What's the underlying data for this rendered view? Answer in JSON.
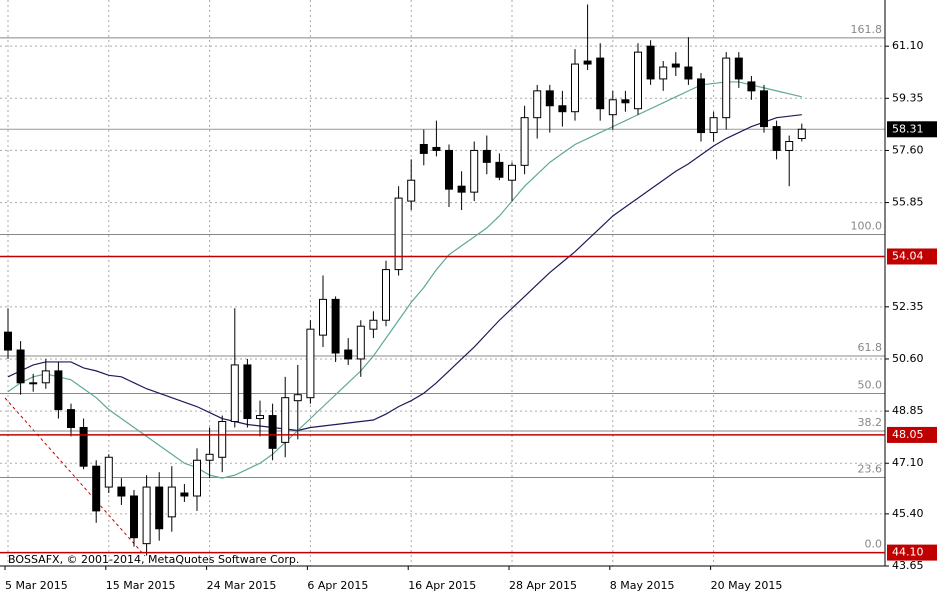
{
  "chart_data": {
    "type": "candlestick",
    "watermark": "BOSSAFX, © 2001-2014, MetaQuotes Software Corp.",
    "categories": [
      "5 Mar 2015",
      null,
      null,
      null,
      null,
      null,
      null,
      null,
      "15 Mar 2015",
      null,
      null,
      null,
      null,
      null,
      null,
      null,
      "24 Mar 2015",
      null,
      null,
      null,
      null,
      null,
      null,
      null,
      "6 Apr 2015",
      null,
      null,
      null,
      null,
      null,
      null,
      null,
      "16 Apr 2015",
      null,
      null,
      null,
      null,
      null,
      null,
      null,
      "28 Apr 2015",
      null,
      null,
      null,
      null,
      null,
      null,
      null,
      "8 May 2015",
      null,
      null,
      null,
      null,
      null,
      null,
      null,
      "20 May 2015",
      null,
      null,
      null,
      null,
      null,
      null,
      null
    ],
    "open": [
      51.5,
      50.9,
      49.8,
      49.8,
      50.2,
      48.9,
      48.3,
      47.0,
      46.3,
      46.3,
      46.0,
      44.4,
      46.3,
      45.3,
      46.1,
      46.0,
      47.2,
      47.3,
      48.5,
      50.4,
      48.6,
      48.7,
      47.8,
      49.2,
      49.3,
      51.4,
      52.6,
      50.9,
      50.6,
      51.6,
      51.9,
      53.6,
      55.9,
      57.8,
      57.7,
      57.6,
      56.4,
      56.2,
      57.6,
      57.2,
      56.6,
      57.1,
      58.7,
      59.6,
      59.1,
      58.9,
      60.6,
      60.7,
      58.8,
      59.3,
      59.0,
      61.1,
      60.0,
      60.5,
      60.4,
      60.0,
      58.2,
      58.7,
      60.7,
      59.9,
      59.6,
      58.4,
      57.6,
      58.0
    ],
    "high": [
      52.3,
      51.2,
      50.1,
      50.6,
      50.5,
      49.1,
      48.6,
      47.2,
      47.4,
      46.6,
      46.2,
      46.7,
      46.8,
      47.0,
      46.4,
      47.6,
      48.3,
      48.7,
      52.3,
      50.6,
      49.2,
      49.1,
      50.0,
      50.4,
      51.9,
      53.4,
      52.7,
      51.3,
      51.9,
      52.2,
      53.9,
      56.4,
      57.3,
      58.3,
      58.6,
      57.8,
      56.9,
      57.9,
      58.1,
      57.5,
      57.2,
      59.1,
      59.8,
      59.8,
      59.6,
      61.0,
      62.5,
      61.2,
      59.6,
      59.6,
      61.2,
      61.3,
      60.6,
      60.9,
      61.4,
      60.2,
      58.9,
      60.9,
      60.9,
      60.1,
      59.8,
      58.6,
      58.1,
      58.5
    ],
    "low": [
      50.6,
      49.4,
      49.5,
      49.6,
      48.6,
      48.0,
      46.9,
      45.1,
      46.1,
      45.7,
      44.3,
      44.0,
      44.5,
      44.8,
      45.8,
      45.5,
      46.6,
      46.8,
      48.3,
      48.3,
      48.0,
      47.2,
      47.3,
      47.9,
      49.1,
      51.0,
      50.5,
      50.4,
      50.0,
      51.3,
      51.7,
      53.4,
      55.6,
      57.1,
      57.4,
      55.7,
      55.6,
      55.9,
      56.8,
      56.6,
      55.9,
      56.8,
      58.0,
      58.2,
      58.4,
      58.6,
      60.3,
      58.6,
      58.3,
      58.9,
      58.8,
      59.8,
      59.6,
      60.1,
      59.8,
      57.9,
      57.9,
      58.3,
      59.7,
      59.3,
      58.2,
      57.3,
      56.4,
      57.9
    ],
    "close": [
      50.9,
      49.8,
      49.8,
      50.2,
      48.9,
      48.3,
      47.0,
      45.5,
      47.3,
      46.0,
      44.6,
      46.3,
      44.9,
      46.3,
      46.0,
      47.2,
      47.4,
      48.5,
      50.4,
      48.6,
      48.7,
      47.6,
      49.3,
      49.4,
      51.6,
      52.6,
      50.8,
      50.6,
      51.7,
      51.9,
      53.6,
      56.0,
      56.6,
      57.5,
      57.6,
      56.3,
      56.2,
      57.6,
      57.2,
      56.7,
      57.1,
      58.7,
      59.6,
      59.1,
      58.9,
      60.5,
      60.5,
      59.0,
      59.3,
      59.2,
      60.9,
      60.0,
      60.4,
      60.4,
      60.0,
      58.2,
      58.7,
      60.7,
      60.0,
      59.6,
      58.4,
      57.6,
      57.9,
      58.31
    ],
    "bull_color": "#ffffff",
    "bear_color": "#000000",
    "lines": [
      {
        "color": "#1c1c5c",
        "values": [
          50.0,
          50.2,
          50.4,
          50.5,
          50.5,
          50.5,
          50.3,
          50.2,
          50.05,
          50.0,
          49.8,
          49.6,
          49.45,
          49.3,
          49.15,
          49.0,
          48.8,
          48.6,
          48.5,
          48.4,
          48.35,
          48.3,
          48.25,
          48.2,
          48.3,
          48.35,
          48.4,
          48.45,
          48.5,
          48.55,
          48.75,
          49.0,
          49.2,
          49.45,
          49.8,
          50.2,
          50.6,
          51.0,
          51.45,
          51.9,
          52.3,
          52.7,
          53.1,
          53.5,
          53.85,
          54.2,
          54.6,
          55.0,
          55.4,
          55.7,
          56.0,
          56.3,
          56.6,
          56.9,
          57.15,
          57.45,
          57.75,
          58.0,
          58.2,
          58.4,
          58.55,
          58.7,
          58.75,
          58.8
        ]
      },
      {
        "color": "#5fa89a",
        "values": [
          49.5,
          49.8,
          50.0,
          50.1,
          50.0,
          49.9,
          49.6,
          49.3,
          48.9,
          48.6,
          48.3,
          48.0,
          47.7,
          47.4,
          47.1,
          46.95,
          46.7,
          46.6,
          46.7,
          46.9,
          47.1,
          47.4,
          47.8,
          48.2,
          48.6,
          49.0,
          49.4,
          49.8,
          50.2,
          50.7,
          51.3,
          51.9,
          52.5,
          53.0,
          53.6,
          54.1,
          54.4,
          54.7,
          55.0,
          55.4,
          55.9,
          56.4,
          56.8,
          57.2,
          57.5,
          57.8,
          58.0,
          58.2,
          58.4,
          58.6,
          58.8,
          59.0,
          59.2,
          59.4,
          59.6,
          59.8,
          59.85,
          59.9,
          59.9,
          59.8,
          59.7,
          59.6,
          59.5,
          59.4
        ]
      }
    ],
    "ylim": [
      43.65,
      62.65
    ],
    "yticks": [
      {
        "value": 61.1,
        "label": "61.10"
      },
      59.35,
      {
        "value": 57.6,
        "label": "57.60"
      },
      55.85,
      52.35,
      {
        "value": 50.6,
        "label": "50.60"
      },
      48.85,
      {
        "value": 47.1,
        "label": "47.10"
      },
      {
        "value": 45.4,
        "label": "45.40"
      },
      43.65
    ],
    "grid": true,
    "fib_levels": [
      {
        "value": 61.38,
        "label": "161.8"
      },
      {
        "value": 54.78,
        "label": "100.0"
      },
      {
        "value": 50.7,
        "label": "61.8"
      },
      {
        "value": 49.44,
        "label": "50.0"
      },
      {
        "value": 48.18,
        "label": "38.2"
      },
      {
        "value": 46.62,
        "label": "23.6"
      },
      {
        "value": 44.1,
        "label": "0.0"
      }
    ],
    "fib_color": "#888888",
    "price_lines": [
      54.04,
      48.05,
      {
        "value": 44.1,
        "label": "44.10"
      }
    ],
    "price_line_color": "#c00000",
    "last_price": 58.31
  }
}
